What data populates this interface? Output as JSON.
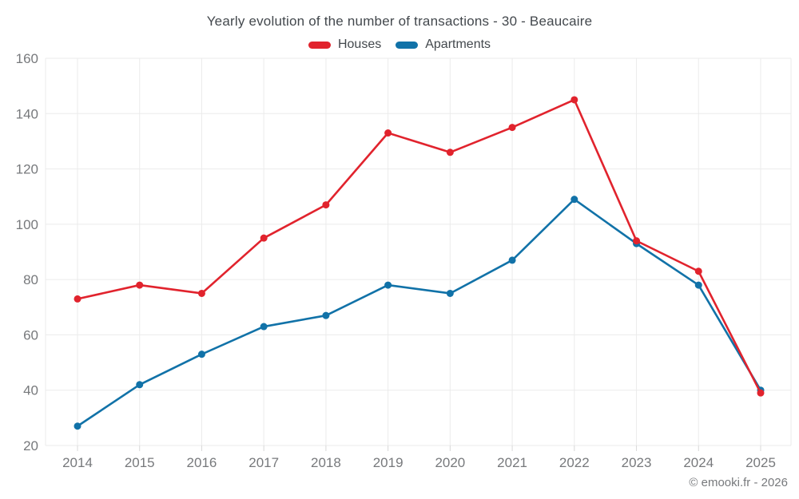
{
  "chart_data": {
    "type": "line",
    "title": "Yearly evolution of the number of transactions - 30 - Beaucaire",
    "x": [
      "2014",
      "2015",
      "2016",
      "2017",
      "2018",
      "2019",
      "2020",
      "2021",
      "2022",
      "2023",
      "2024",
      "2025"
    ],
    "y_ticks": [
      20,
      40,
      60,
      80,
      100,
      120,
      140,
      160
    ],
    "ylim": [
      20,
      160
    ],
    "grid": true,
    "legend_position": "top",
    "series": [
      {
        "name": "Apartments",
        "color": "#1172a8",
        "values": [
          27,
          42,
          53,
          63,
          67,
          78,
          75,
          87,
          109,
          93,
          78,
          40
        ]
      },
      {
        "name": "Houses",
        "color": "#e1232d",
        "values": [
          73,
          78,
          75,
          95,
          107,
          133,
          126,
          135,
          145,
          94,
          83,
          39
        ]
      }
    ],
    "legend_order": [
      "Houses",
      "Apartments"
    ]
  },
  "footer": {
    "copyright": "© emooki.fr - 2026"
  },
  "colors": {
    "background": "#ffffff",
    "grid": "#ebebeb",
    "tick": "#d8d8d8",
    "axis_label": "#77797c",
    "title_text": "#43484d"
  }
}
